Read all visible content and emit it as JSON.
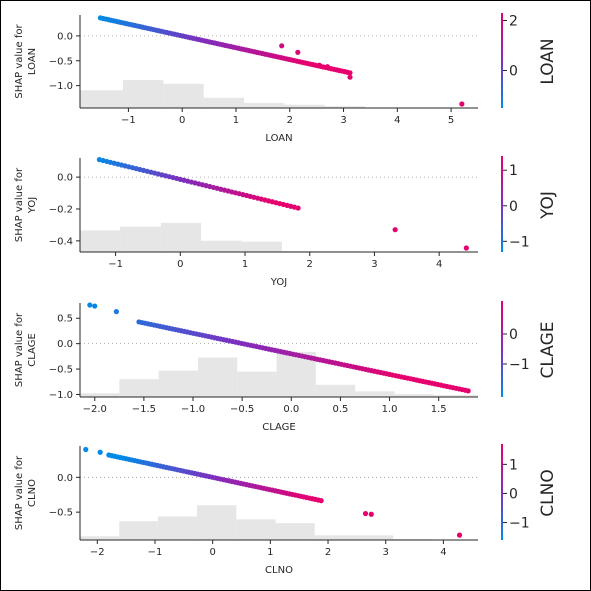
{
  "chart_data": [
    {
      "type": "scatter",
      "feature": "LOAN",
      "xlabel": "LOAN",
      "ylabel_line1": "SHAP value for",
      "ylabel_line2": "LOAN",
      "colorbar_label": "LOAN",
      "xlim": [
        -1.9,
        5.5
      ],
      "ylim": [
        -1.45,
        0.42
      ],
      "xticks": [
        -1,
        0,
        1,
        2,
        3,
        4,
        5
      ],
      "yticks": [
        0.0,
        -0.5,
        -1.0
      ],
      "ytick_labels": [
        "0.0",
        "−0.5",
        "−1.0"
      ],
      "xtick_labels": [
        "−1",
        "0",
        "1",
        "2",
        "3",
        "4",
        "5"
      ],
      "colorbar_ticks": [
        2,
        0
      ],
      "colorbar_tick_labels": [
        "2",
        "0"
      ],
      "colorbar_range": [
        -1.5,
        2.3
      ],
      "line": {
        "x_start": -1.52,
        "x_end": 3.12,
        "slope": -0.238,
        "intercept": 0.0,
        "n": 95
      },
      "extra_points": [
        [
          1.85,
          -0.2
        ],
        [
          2.15,
          -0.33
        ],
        [
          2.55,
          -0.59
        ],
        [
          2.7,
          -0.62
        ],
        [
          3.12,
          -0.83
        ],
        [
          5.2,
          -1.37
        ]
      ],
      "histogram": {
        "edges": [
          -1.9,
          -1.1,
          -0.35,
          0.4,
          1.15,
          1.9,
          2.65,
          3.4,
          4.15,
          4.9,
          5.5
        ],
        "heights": [
          0.19,
          0.3,
          0.26,
          0.11,
          0.055,
          0.035,
          0.02,
          0.005,
          0.003,
          0.003
        ]
      }
    },
    {
      "type": "scatter",
      "feature": "YOJ",
      "xlabel": "YOJ",
      "ylabel_line1": "SHAP value for",
      "ylabel_line2": "YOJ",
      "colorbar_label": "YOJ",
      "xlim": [
        -1.55,
        4.6
      ],
      "ylim": [
        -0.47,
        0.12
      ],
      "xticks": [
        -1,
        0,
        1,
        2,
        3,
        4
      ],
      "xtick_labels": [
        "−1",
        "0",
        "1",
        "2",
        "3",
        "4"
      ],
      "yticks": [
        0.0,
        -0.2,
        -0.4
      ],
      "ytick_labels": [
        "0.0",
        "−0.2",
        "−0.4"
      ],
      "colorbar_ticks": [
        1,
        0,
        -1
      ],
      "colorbar_tick_labels": [
        "1",
        "0",
        "−1"
      ],
      "colorbar_range": [
        -1.3,
        1.4
      ],
      "line": {
        "x_start": -1.25,
        "x_end": 1.82,
        "slope": -0.099,
        "intercept": -0.014,
        "n": 55
      },
      "extra_points": [
        [
          3.32,
          -0.33
        ],
        [
          4.42,
          -0.445
        ]
      ],
      "histogram": {
        "edges": [
          -1.55,
          -0.93,
          -0.3,
          0.32,
          0.95,
          1.57,
          2.2,
          2.82,
          3.45,
          4.07,
          4.6
        ],
        "heights": [
          0.23,
          0.27,
          0.31,
          0.12,
          0.11,
          0.01,
          0.008,
          0.004,
          0.004,
          0.004
        ]
      }
    },
    {
      "type": "scatter",
      "feature": "CLAGE",
      "xlabel": "CLAGE",
      "ylabel_line1": "SHAP value for",
      "ylabel_line2": "CLAGE",
      "colorbar_label": "CLAGE",
      "xlim": [
        -2.15,
        1.9
      ],
      "ylim": [
        -1.05,
        0.8
      ],
      "xticks": [
        -2.0,
        -1.5,
        -1.0,
        -0.5,
        0.0,
        0.5,
        1.0,
        1.5
      ],
      "xtick_labels": [
        "−2.0",
        "−1.5",
        "−1.0",
        "−0.5",
        "0.0",
        "0.5",
        "1.0",
        "1.5"
      ],
      "yticks": [
        0.5,
        0.0,
        -0.5,
        -1.0
      ],
      "ytick_labels": [
        "0.5",
        "0.0",
        "−0.5",
        "−1.0"
      ],
      "colorbar_ticks": [
        0,
        -1
      ],
      "colorbar_tick_labels": [
        "0",
        "−1"
      ],
      "colorbar_range": [
        -2.1,
        1.1
      ],
      "line": {
        "x_start": -1.55,
        "x_end": 1.8,
        "slope": -0.405,
        "intercept": -0.2,
        "n": 110
      },
      "extra_points": [
        [
          -2.05,
          0.76
        ],
        [
          -1.78,
          0.63
        ],
        [
          -2.0,
          0.74
        ]
      ],
      "histogram": {
        "edges": [
          -2.15,
          -1.75,
          -1.35,
          -0.95,
          -0.55,
          -0.15,
          0.25,
          0.65,
          1.05,
          1.45,
          1.9
        ],
        "heights": [
          0.04,
          0.19,
          0.28,
          0.42,
          0.27,
          0.48,
          0.13,
          0.06,
          0.03,
          0.02
        ]
      }
    },
    {
      "type": "scatter",
      "feature": "CLNO",
      "xlabel": "CLNO",
      "ylabel_line1": "SHAP value for",
      "ylabel_line2": "CLNO",
      "colorbar_label": "CLNO",
      "xlim": [
        -2.3,
        4.6
      ],
      "ylim": [
        -0.9,
        0.45
      ],
      "xticks": [
        -2,
        -1,
        0,
        1,
        2,
        3,
        4
      ],
      "xtick_labels": [
        "−2",
        "−1",
        "0",
        "1",
        "2",
        "3",
        "4"
      ],
      "yticks": [
        0.0,
        -0.5
      ],
      "ytick_labels": [
        "0.0",
        "−0.5"
      ],
      "colorbar_ticks": [
        1,
        0,
        -1
      ],
      "colorbar_tick_labels": [
        "1",
        "0",
        "−1"
      ],
      "colorbar_range": [
        -1.6,
        1.7
      ],
      "line": {
        "x_start": -1.8,
        "x_end": 1.88,
        "slope": -0.178,
        "intercept": 0.0,
        "n": 75
      },
      "extra_points": [
        [
          -2.2,
          0.4
        ],
        [
          -1.95,
          0.36
        ],
        [
          2.65,
          -0.52
        ],
        [
          2.75,
          -0.53
        ],
        [
          4.28,
          -0.83
        ]
      ],
      "histogram": {
        "edges": [
          -2.3,
          -1.62,
          -0.95,
          -0.27,
          0.41,
          1.09,
          1.77,
          2.45,
          3.13,
          3.81,
          4.6
        ],
        "heights": [
          0.04,
          0.2,
          0.25,
          0.37,
          0.22,
          0.18,
          0.05,
          0.05,
          0.01,
          0.004
        ]
      }
    }
  ]
}
